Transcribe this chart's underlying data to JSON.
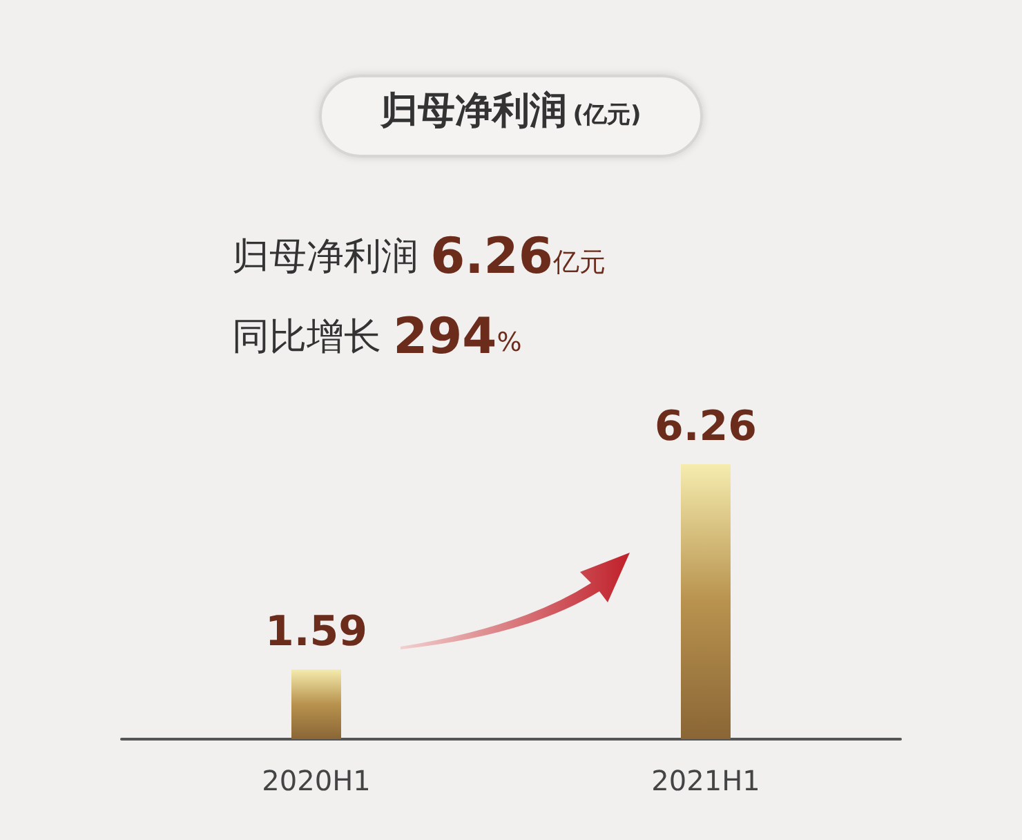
{
  "chart_data": {
    "type": "bar",
    "title": "归母净利润(亿元)",
    "annotations": [
      "归母净利润 6.26亿元",
      "同比增长 294%"
    ],
    "categories": [
      "2020H1",
      "2021H1"
    ],
    "values": [
      1.59,
      6.26
    ],
    "color": "#b8924e",
    "data_labels": true
  }
}
